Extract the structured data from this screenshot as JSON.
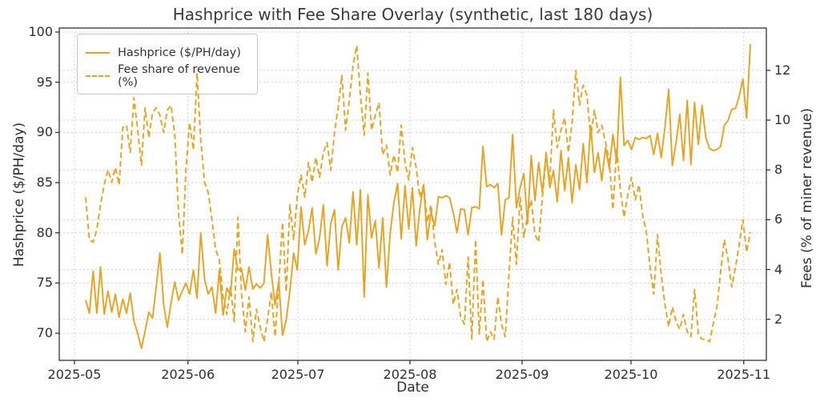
{
  "figure": {
    "title": "Hashprice with Fee Share Overlay (synthetic, last 180 days)"
  },
  "axes": {
    "x_label": "Date",
    "y_left_label": "Hashprice ($/PH/day)",
    "y_right_label": "Fees (% of miner revenue)",
    "x_tick_labels": [
      "2025-05",
      "2025-06",
      "2025-07",
      "2025-08",
      "2025-09",
      "2025-10",
      "2025-11"
    ],
    "y_left_tick_labels": [
      "100",
      "95",
      "90",
      "85",
      "80",
      "75",
      "70"
    ],
    "y_right_tick_labels": [
      "12",
      "10",
      "8",
      "6",
      "4",
      "2"
    ]
  },
  "legend": {
    "entries": [
      {
        "label": "Hashprice ($/PH/day)",
        "style": "solid"
      },
      {
        "label": "Fee share of revenue (%)",
        "style": "dashed"
      }
    ]
  },
  "colors": {
    "accent": "#E8A21D",
    "grid": "#cfcfcf",
    "text": "#2e2e2e",
    "spine": "#333333",
    "background": "#ffffff"
  },
  "chart_data": {
    "type": "line",
    "title": "Hashprice with Fee Share Overlay (synthetic, last 180 days)",
    "xlabel": "Date",
    "ylabel_left": "Hashprice ($/PH/day)",
    "ylabel_right": "Fees (% of miner revenue)",
    "x_start": "2025-05-04",
    "x_end": "2025-10-30",
    "points": 180,
    "x_tick_labels": [
      "2025-05",
      "2025-06",
      "2025-07",
      "2025-08",
      "2025-09",
      "2025-10",
      "2025-11"
    ],
    "y_left_ticks": [
      100,
      95,
      90,
      85,
      80,
      75,
      70
    ],
    "y_right_ticks": [
      12,
      10,
      8,
      6,
      4,
      2
    ],
    "ylim_left": [
      67.3,
      100.4
    ],
    "ylim_right": [
      0.35,
      13.7
    ],
    "grid": true,
    "legend_position": "upper left",
    "series": [
      {
        "name": "Hashprice ($/PH/day)",
        "axis": "left",
        "style": "solid",
        "values": [
          73.3,
          72.0,
          76.2,
          72.0,
          76.6,
          71.9,
          74.2,
          72.1,
          73.9,
          71.6,
          73.4,
          72.0,
          74.0,
          71.2,
          70.0,
          68.5,
          70.2,
          72.1,
          71.5,
          74.6,
          78.0,
          72.8,
          70.6,
          73.0,
          75.1,
          73.3,
          74.2,
          75.0,
          73.9,
          76.3,
          73.5,
          80.0,
          75.4,
          73.9,
          74.6,
          72.0,
          76.3,
          71.8,
          74.5,
          73.8,
          78.4,
          76.3,
          76.4,
          74.3,
          76.6,
          74.4,
          74.9,
          74.5,
          75.0,
          79.8,
          76.0,
          72.8,
          75.2,
          69.8,
          71.3,
          74.2,
          78.0,
          76.3,
          82.6,
          78.8,
          80.2,
          82.5,
          77.9,
          79.5,
          82.8,
          76.7,
          80.9,
          82.3,
          76.3,
          80.6,
          81.5,
          79.0,
          84.1,
          78.8,
          84.3,
          73.6,
          83.8,
          79.5,
          81.2,
          76.5,
          81.5,
          74.6,
          79.9,
          83.0,
          84.9,
          79.4,
          84.7,
          80.4,
          84.5,
          78.7,
          82.4,
          84.8,
          79.3,
          82.1,
          80.7,
          83.6,
          83.5,
          83.7,
          83.5,
          82.0,
          80.0,
          82.4,
          82.3,
          79.8,
          82.5,
          82.6,
          82.4,
          88.6,
          84.6,
          84.8,
          84.5,
          84.9,
          79.8,
          83.3,
          83.5,
          89.8,
          82.5,
          84.5,
          85.9,
          80.9,
          87.7,
          83.2,
          87.0,
          84.0,
          88.0,
          84.5,
          86.2,
          83.1,
          88.2,
          84.2,
          87.5,
          83.0,
          86.8,
          84.3,
          88.9,
          85.0,
          90.7,
          86.0,
          88.0,
          85.2,
          88.5,
          86.4,
          89.8,
          87.0,
          95.5,
          88.7,
          89.2,
          88.3,
          89.5,
          89.3,
          89.5,
          89.4,
          89.7,
          87.8,
          89.9,
          87.5,
          90.5,
          94.3,
          86.7,
          89.0,
          91.8,
          87.2,
          93.2,
          86.8,
          93.0,
          88.8,
          92.7,
          89.5,
          88.4,
          88.2,
          88.3,
          88.6,
          90.7,
          91.2,
          92.3,
          92.4,
          93.6,
          95.3,
          91.4,
          98.8
        ]
      },
      {
        "name": "Fee share of revenue (%)",
        "axis": "right",
        "style": "dashed",
        "values": [
          6.9,
          5.2,
          5.1,
          5.6,
          6.6,
          7.4,
          8.0,
          7.5,
          8.1,
          7.4,
          9.7,
          9.8,
          8.7,
          10.9,
          9.6,
          8.2,
          10.5,
          9.3,
          10.3,
          10.5,
          10.2,
          9.5,
          10.4,
          10.6,
          9.4,
          6.3,
          4.6,
          8.0,
          9.9,
          8.8,
          11.9,
          9.2,
          7.5,
          7.1,
          6.0,
          4.8,
          4.4,
          2.9,
          2.2,
          3.3,
          1.9,
          6.1,
          3.0,
          1.5,
          2.9,
          1.1,
          2.4,
          1.7,
          1.1,
          2.0,
          3.1,
          1.3,
          3.4,
          5.9,
          3.1,
          6.6,
          5.2,
          7.0,
          7.8,
          6.9,
          8.3,
          7.5,
          8.5,
          7.7,
          8.7,
          9.1,
          8.0,
          9.5,
          10.5,
          11.8,
          9.6,
          10.8,
          12.2,
          13.0,
          11.0,
          9.4,
          11.9,
          9.6,
          10.2,
          10.7,
          8.6,
          9.0,
          7.8,
          8.6,
          7.9,
          9.8,
          8.3,
          7.6,
          8.9,
          8.1,
          6.9,
          7.4,
          5.9,
          6.6,
          5.1,
          4.2,
          4.8,
          3.4,
          4.3,
          2.6,
          3.2,
          2.1,
          1.8,
          4.5,
          1.2,
          5.2,
          1.4,
          3.6,
          1.1,
          1.5,
          1.2,
          2.9,
          1.8,
          1.3,
          3.8,
          6.1,
          4.2,
          6.9,
          5.3,
          6.2,
          6.8,
          5.4,
          5.1,
          6.9,
          8.5,
          7.6,
          10.4,
          8.9,
          9.6,
          10.1,
          8.7,
          9.9,
          12.0,
          10.6,
          11.4,
          11.0,
          9.3,
          10.4,
          9.5,
          9.8,
          9.1,
          8.4,
          6.4,
          8.9,
          7.2,
          6.1,
          7.0,
          7.7,
          6.8,
          7.4,
          6.2,
          5.5,
          4.1,
          3.0,
          5.4,
          3.8,
          2.6,
          1.7,
          2.5,
          1.9,
          1.6,
          2.2,
          1.5,
          1.3,
          3.2,
          1.4,
          1.2,
          1.2,
          1.1,
          1.8,
          2.5,
          3.9,
          5.2,
          4.4,
          3.3,
          4.1,
          5.0,
          6.0,
          4.7,
          5.5
        ]
      }
    ]
  }
}
